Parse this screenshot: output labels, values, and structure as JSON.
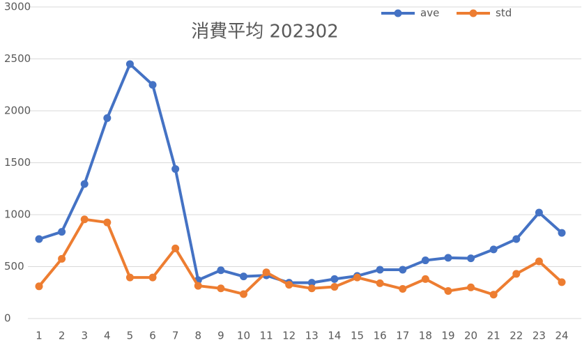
{
  "chart_data": {
    "type": "line",
    "title": "消費平均 202302",
    "categories": [
      "1",
      "2",
      "3",
      "4",
      "5",
      "6",
      "7",
      "8",
      "9",
      "10",
      "11",
      "12",
      "13",
      "14",
      "15",
      "16",
      "17",
      "18",
      "19",
      "20",
      "21",
      "22",
      "23",
      "24"
    ],
    "series": [
      {
        "name": "ave",
        "color": "#4472c4",
        "values": [
          765,
          835,
          1295,
          1930,
          2450,
          2250,
          1440,
          370,
          465,
          405,
          415,
          345,
          345,
          380,
          410,
          470,
          470,
          560,
          585,
          580,
          665,
          765,
          1020,
          825
        ]
      },
      {
        "name": "std",
        "color": "#ed7d31",
        "values": [
          310,
          575,
          955,
          925,
          395,
          395,
          675,
          315,
          290,
          235,
          445,
          325,
          290,
          305,
          395,
          340,
          285,
          380,
          265,
          300,
          230,
          430,
          550,
          350
        ]
      }
    ],
    "ylim": [
      0,
      3000
    ],
    "yticks": [
      0,
      500,
      1000,
      1500,
      2000,
      2500,
      3000
    ],
    "grid": true,
    "legend": "top-right"
  }
}
